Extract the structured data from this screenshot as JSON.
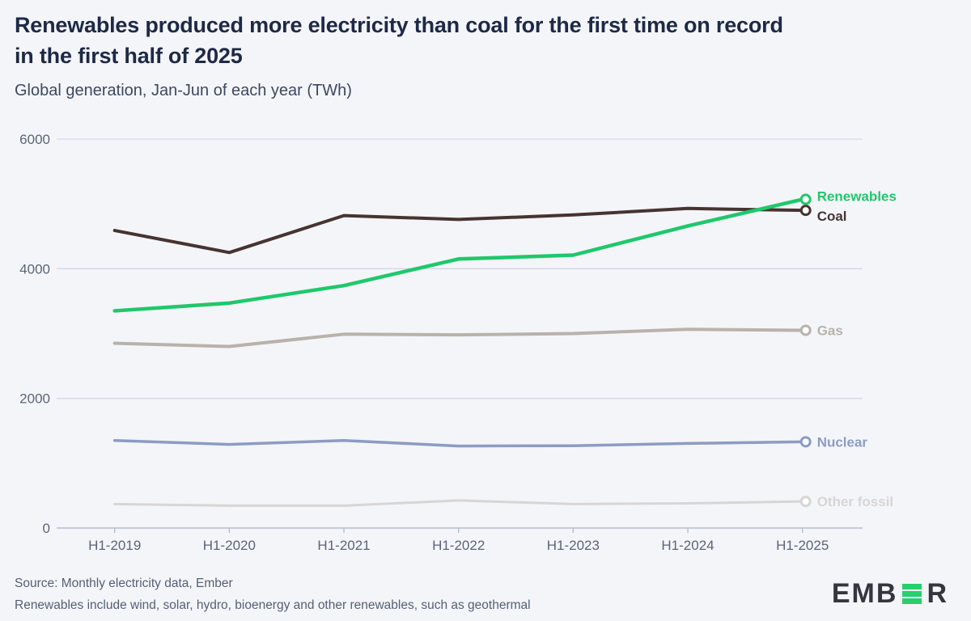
{
  "header": {
    "title_line1": "Renewables produced more electricity than coal for the first time on record",
    "title_line2": "in the first half of 2025",
    "subtitle": "Global generation, Jan-Jun of each year (TWh)"
  },
  "chart_data": {
    "type": "line",
    "title": "Renewables produced more electricity than coal for the first time on record in the first half of 2025",
    "subtitle": "Global generation, Jan-Jun of each year (TWh)",
    "unit": "TWh",
    "categories": [
      "H1-2019",
      "H1-2020",
      "H1-2021",
      "H1-2022",
      "H1-2023",
      "H1-2024",
      "H1-2025"
    ],
    "ylim": [
      0,
      6000
    ],
    "yticks": [
      0,
      2000,
      4000,
      6000
    ],
    "grid": "horizontal",
    "legend_position": "line-end-labels",
    "axis_color": "#b8bdcb",
    "grid_color": "#ccd2e0",
    "series": [
      {
        "name": "Renewables",
        "color": "#1fc86b",
        "stroke_width": 4.5,
        "label_dy": -4,
        "values": [
          3350,
          3470,
          3740,
          4150,
          4210,
          4660,
          5070
        ]
      },
      {
        "name": "Coal",
        "color": "#463430",
        "stroke_width": 4,
        "label_dy": 7,
        "values": [
          4590,
          4250,
          4820,
          4760,
          4830,
          4930,
          4900
        ]
      },
      {
        "name": "Gas",
        "color": "#b9b2ab",
        "stroke_width": 4,
        "label_dy": 0,
        "values": [
          2850,
          2800,
          2990,
          2980,
          3000,
          3065,
          3050
        ]
      },
      {
        "name": "Nuclear",
        "color": "#8c9cc2",
        "stroke_width": 3.5,
        "label_dy": 0,
        "values": [
          1350,
          1290,
          1350,
          1265,
          1270,
          1305,
          1330
        ]
      },
      {
        "name": "Other fossil",
        "color": "#d8d6d4",
        "stroke_width": 3,
        "label_dy": 0,
        "values": [
          370,
          345,
          345,
          425,
          370,
          380,
          410
        ]
      }
    ]
  },
  "footer": {
    "source": "Source: Monthly electricity data, Ember",
    "note": "Renewables include wind, solar, hydro, bioenergy and other renewables, such as geothermal"
  },
  "logo": {
    "prefix": "EMB",
    "suffix": "R",
    "alt": "EMBER",
    "green": "#27cf6d",
    "dark": "#33373d"
  }
}
